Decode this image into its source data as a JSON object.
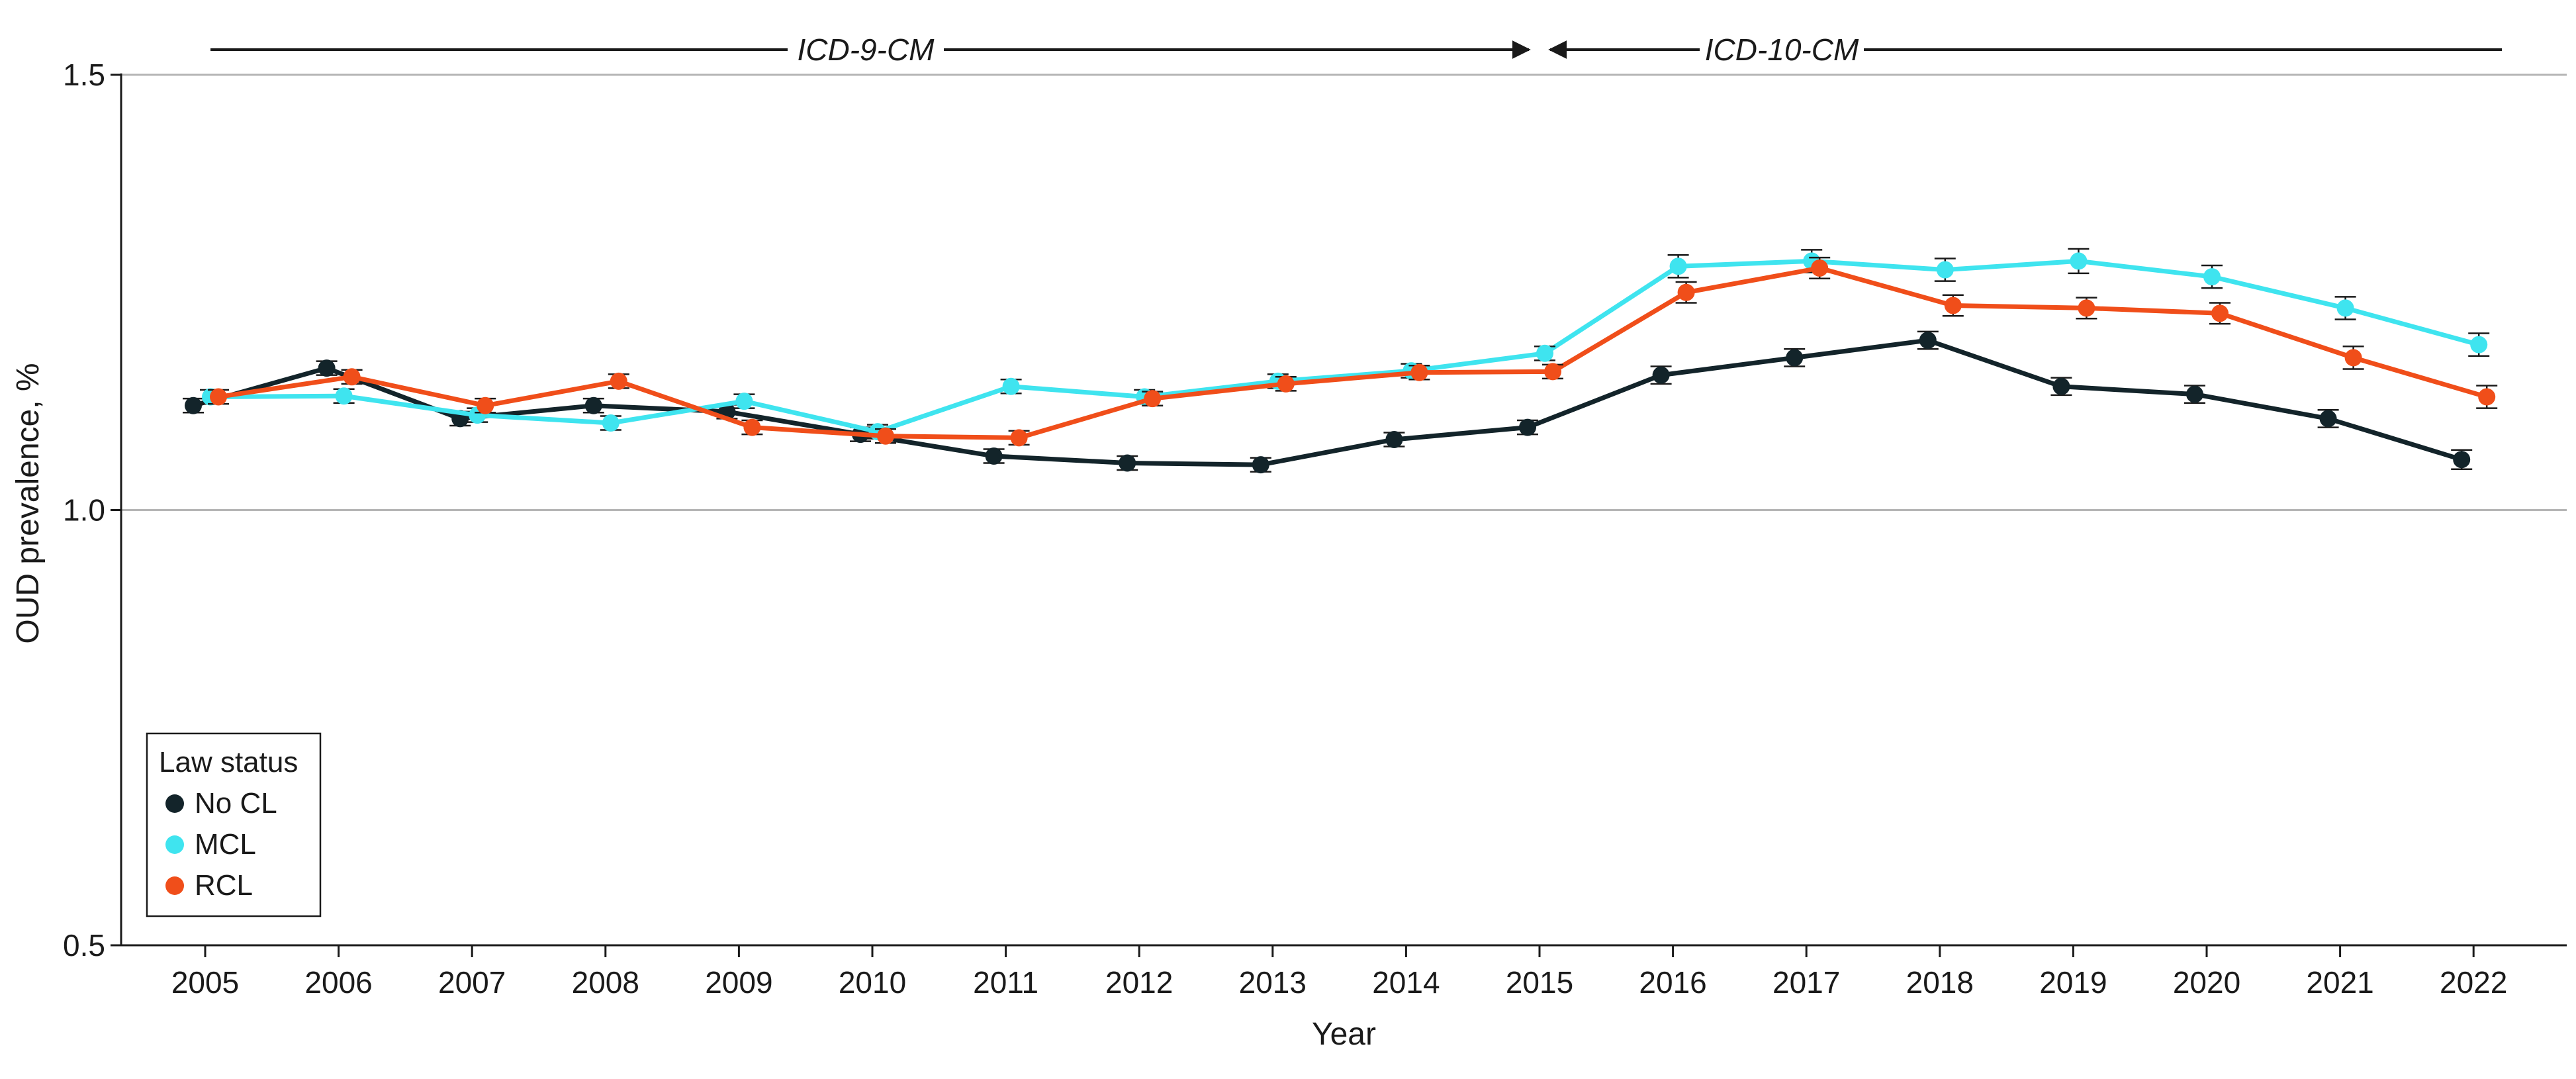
{
  "chart_data": {
    "type": "line",
    "title": "",
    "xlabel": "Year",
    "ylabel": "OUD prevalence, %",
    "categories": [
      "2005",
      "2006",
      "2007",
      "2008",
      "2009",
      "2010",
      "2011",
      "2012",
      "2013",
      "2014",
      "2015",
      "2016",
      "2017",
      "2018",
      "2019",
      "2020",
      "2021",
      "2022"
    ],
    "ylim": [
      0.5,
      1.5
    ],
    "yticks": [
      "0.5",
      "1.0",
      "1.5"
    ],
    "grid": "horizontal gridlines at 1.0 and 1.5",
    "legend": {
      "title": "Law status",
      "placement": "bottom-left"
    },
    "periods": [
      {
        "label": "ICD-9-CM",
        "start": "2005",
        "end": "2015"
      },
      {
        "label": "ICD-10-CM",
        "start": "2015",
        "end": "2022"
      }
    ],
    "series": [
      {
        "name": "No CL",
        "color": "#13242a",
        "values": [
          1.12,
          1.163,
          1.105,
          1.12,
          1.113,
          1.087,
          1.062,
          1.054,
          1.052,
          1.081,
          1.095,
          1.155,
          1.175,
          1.195,
          1.142,
          1.133,
          1.105,
          1.058
        ],
        "err": [
          0.008,
          0.008,
          0.008,
          0.008,
          0.008,
          0.008,
          0.008,
          0.008,
          0.008,
          0.008,
          0.008,
          0.01,
          0.01,
          0.01,
          0.01,
          0.01,
          0.01,
          0.011
        ]
      },
      {
        "name": "MCL",
        "color": "#3fe4ef",
        "values": [
          1.13,
          1.131,
          1.109,
          1.1,
          1.125,
          1.09,
          1.142,
          1.13,
          1.148,
          1.16,
          1.18,
          1.28,
          1.286,
          1.276,
          1.286,
          1.268,
          1.232,
          1.19
        ],
        "err": [
          0.008,
          0.008,
          0.008,
          0.008,
          0.008,
          0.008,
          0.008,
          0.008,
          0.008,
          0.008,
          0.008,
          0.013,
          0.013,
          0.013,
          0.014,
          0.013,
          0.013,
          0.013
        ]
      },
      {
        "name": "RCL",
        "color": "#f04e1a",
        "values": [
          1.13,
          1.153,
          1.12,
          1.148,
          1.095,
          1.085,
          1.083,
          1.128,
          1.145,
          1.158,
          1.159,
          1.25,
          1.278,
          1.235,
          1.232,
          1.226,
          1.175,
          1.13
        ],
        "err": [
          0.008,
          0.008,
          0.008,
          0.008,
          0.008,
          0.008,
          0.008,
          0.008,
          0.008,
          0.008,
          0.008,
          0.012,
          0.012,
          0.012,
          0.012,
          0.012,
          0.013,
          0.013
        ]
      }
    ]
  }
}
